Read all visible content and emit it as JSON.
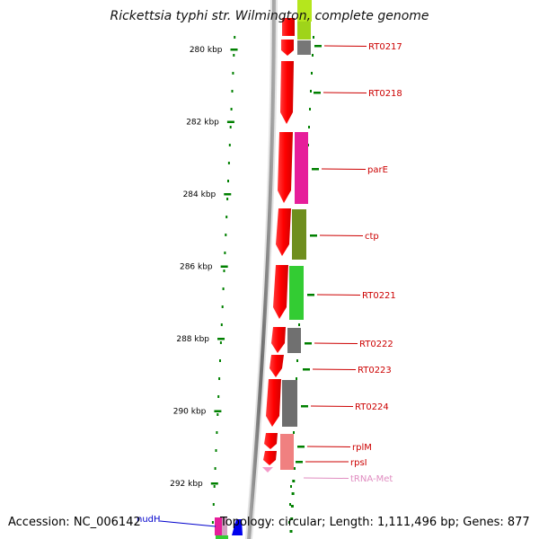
{
  "title": "Rickettsia typhi str. Wilmington, complete genome",
  "footer": {
    "accession": "Accession: NC_006142",
    "topology": "Topology: circular; Length: 1,111,496 bp; Genes: 877"
  },
  "ruler": [
    "280 kbp",
    "282 kbp",
    "284 kbp",
    "286 kbp",
    "288 kbp",
    "290 kbp",
    "292 kbp"
  ],
  "colors": {
    "gene_label": "#cc0000",
    "trna_label": "#e08cc0",
    "nudh_label": "#0000cc",
    "tick": "#008000",
    "backbone": "#7a7a7a"
  },
  "gene_labels": [
    {
      "name": "RT0217",
      "color": "#cc0000"
    },
    {
      "name": "RT0218",
      "color": "#cc0000"
    },
    {
      "name": "parE",
      "color": "#cc0000"
    },
    {
      "name": "ctp",
      "color": "#cc0000"
    },
    {
      "name": "RT0221",
      "color": "#cc0000"
    },
    {
      "name": "RT0222",
      "color": "#cc0000"
    },
    {
      "name": "RT0223",
      "color": "#cc0000"
    },
    {
      "name": "RT0224",
      "color": "#cc0000"
    },
    {
      "name": "rplM",
      "color": "#cc0000"
    },
    {
      "name": "rpsI",
      "color": "#cc0000"
    },
    {
      "name": "tRNA-Met",
      "color": "#e08cc0"
    },
    {
      "name": "nudH",
      "color": "#0000cc"
    }
  ]
}
